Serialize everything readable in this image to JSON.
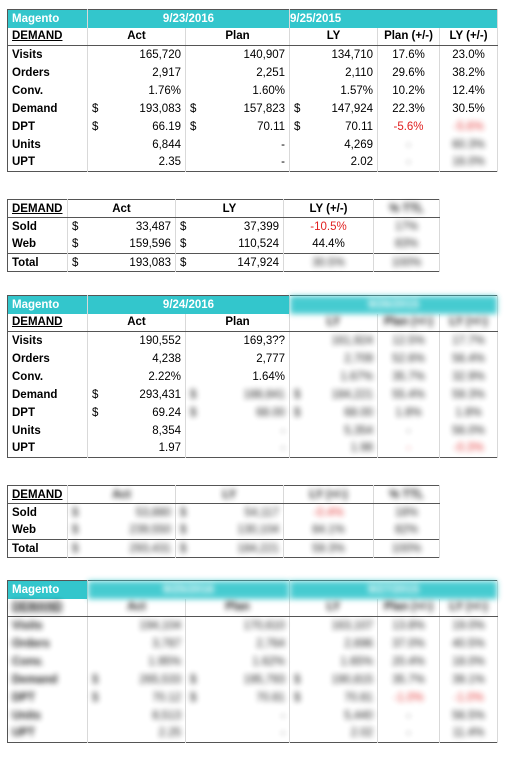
{
  "section1": {
    "brand": "Magento",
    "date_act": "9/23/2016",
    "date_ly": "9/25/2015",
    "headers": [
      "DEMAND",
      "Act",
      "Plan",
      "LY",
      "Plan (+/-)",
      "LY (+/-)"
    ],
    "rows": [
      {
        "label": "Visits",
        "act": "165,720",
        "plan": "140,907",
        "ly": "134,710",
        "plan_pct": "17.6%",
        "ly_pct": "23.0%"
      },
      {
        "label": "Orders",
        "act": "2,917",
        "plan": "2,251",
        "ly": "2,110",
        "plan_pct": "29.6%",
        "ly_pct": "38.2%"
      },
      {
        "label": "Conv.",
        "act": "1.76%",
        "plan": "1.60%",
        "ly": "1.57%",
        "plan_pct": "10.2%",
        "ly_pct": "12.4%"
      },
      {
        "label": "Demand",
        "act": "193,083",
        "plan": "157,823",
        "ly": "147,924",
        "plan_pct": "22.3%",
        "ly_pct": "30.5%",
        "money": true
      },
      {
        "label": "DPT",
        "act": "66.19",
        "plan": "70.11",
        "ly": "70.11",
        "plan_pct": "-5.6%",
        "ly_pct": "-5.6%",
        "money": true,
        "neg": true
      },
      {
        "label": "Units",
        "act": "6,844",
        "plan": "-",
        "ly": "4,269",
        "plan_pct": "-",
        "ly_pct": "60.3%"
      },
      {
        "label": "UPT",
        "act": "2.35",
        "plan": "-",
        "ly": "2.02",
        "plan_pct": "-",
        "ly_pct": "16.0%"
      }
    ]
  },
  "section1b": {
    "headers": [
      "DEMAND",
      "Act",
      "LY",
      "LY (+/-)",
      "% TTL"
    ],
    "rows": [
      {
        "label": "Sold",
        "act": "33,487",
        "ly": "37,399",
        "ly_pct": "-10.5%",
        "ttl": "17%",
        "neg": true
      },
      {
        "label": "Web",
        "act": "159,596",
        "ly": "110,524",
        "ly_pct": "44.4%",
        "ttl": "83%"
      },
      {
        "label": "Total",
        "act": "193,083",
        "ly": "147,924",
        "ly_pct": "30.5%",
        "ttl": "100%"
      }
    ]
  },
  "section2": {
    "brand": "Magento",
    "date_act": "9/24/2016",
    "date_ly": "9/26/2015",
    "headers": [
      "DEMAND",
      "Act",
      "Plan",
      "LY",
      "Plan (+/-)",
      "LY (+/-)"
    ],
    "rows": [
      {
        "label": "Visits",
        "act": "190,552",
        "plan": "169,3??",
        "ly": "161,924",
        "plan_pct": "12.5%",
        "ly_pct": "17.7%"
      },
      {
        "label": "Orders",
        "act": "4,238",
        "plan": "2,777",
        "ly": "2,709",
        "plan_pct": "52.6%",
        "ly_pct": "56.4%"
      },
      {
        "label": "Conv.",
        "act": "2.22%",
        "plan": "1.64%",
        "ly": "1.67%",
        "plan_pct": "35.7%",
        "ly_pct": "32.9%"
      },
      {
        "label": "Demand",
        "act": "293,431",
        "plan": "188,841",
        "ly": "184,221",
        "plan_pct": "55.4%",
        "ly_pct": "59.3%",
        "money": true
      },
      {
        "label": "DPT",
        "act": "69.24",
        "plan": "68.00",
        "ly": "68.00",
        "plan_pct": "1.8%",
        "ly_pct": "1.8%",
        "money": true
      },
      {
        "label": "Units",
        "act": "8,354",
        "plan": "-",
        "ly": "5,354",
        "plan_pct": "-",
        "ly_pct": "56.0%"
      },
      {
        "label": "UPT",
        "act": "1.97",
        "plan": "-",
        "ly": "1.98",
        "plan_pct": "-",
        "ly_pct": "-0.3%",
        "neg": true
      }
    ]
  },
  "section2b": {
    "headers": [
      "DEMAND",
      "Act",
      "LY",
      "LY (+/-)",
      "% TTL"
    ],
    "rows": [
      {
        "label": "Sold",
        "act": "53,880",
        "ly": "54,117",
        "ly_pct": "-0.4%",
        "ttl": "18%",
        "neg": true
      },
      {
        "label": "Web",
        "act": "239,550",
        "ly": "130,104",
        "ly_pct": "84.1%",
        "ttl": "82%"
      },
      {
        "label": "Total",
        "act": "293,431",
        "ly": "184,221",
        "ly_pct": "59.3%",
        "ttl": "100%"
      }
    ]
  },
  "section3": {
    "brand": "Magento",
    "date_act": "9/25/2016",
    "date_ly": "9/27/2015",
    "headers": [
      "DEMAND",
      "Act",
      "Plan",
      "LY",
      "Plan (+/-)",
      "LY (+/-)"
    ],
    "rows": [
      {
        "label": "Visits",
        "act": "194,104",
        "plan": "170,610",
        "ly": "163,107",
        "plan_pct": "13.8%",
        "ly_pct": "19.0%"
      },
      {
        "label": "Orders",
        "act": "3,787",
        "plan": "2,764",
        "ly": "2,696",
        "plan_pct": "37.0%",
        "ly_pct": "40.5%"
      },
      {
        "label": "Conv.",
        "act": "1.95%",
        "plan": "1.62%",
        "ly": "1.65%",
        "plan_pct": "20.4%",
        "ly_pct": "18.0%"
      },
      {
        "label": "Demand",
        "act": "265,533",
        "plan": "195,793",
        "ly": "190,815",
        "plan_pct": "35.7%",
        "ly_pct": "39.1%",
        "money": true
      },
      {
        "label": "DPT",
        "act": "70.12",
        "plan": "70.81",
        "ly": "70.81",
        "plan_pct": "-1.0%",
        "ly_pct": "-1.0%",
        "money": true,
        "neg": true
      },
      {
        "label": "Units",
        "act": "8,513",
        "plan": "-",
        "ly": "5,440",
        "plan_pct": "-",
        "ly_pct": "56.5%"
      },
      {
        "label": "UPT",
        "act": "2.25",
        "plan": "-",
        "ly": "2.02",
        "plan_pct": "-",
        "ly_pct": "11.4%"
      }
    ]
  },
  "colors": {
    "header_bg": "#33c6cc",
    "negative": "#e02020"
  }
}
